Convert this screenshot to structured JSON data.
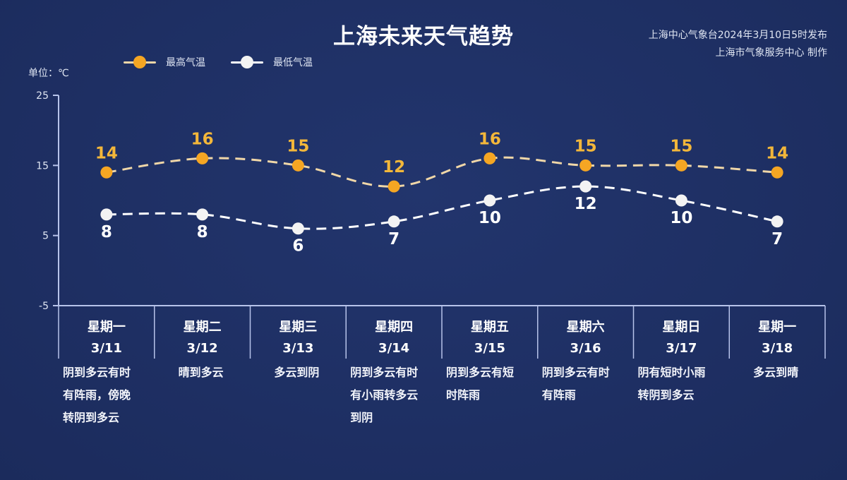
{
  "header": {
    "title": "上海未来天气趋势",
    "publisher_line1": "上海中心气象台2024年3月10日5时发布",
    "publisher_line2": "上海市气象服务中心 制作"
  },
  "unit_label": "单位：℃",
  "legend": [
    {
      "label": "最高气温",
      "color": "#f5a623"
    },
    {
      "label": "最低气温",
      "color": "#ffffff"
    }
  ],
  "colors": {
    "background": "#1f3066",
    "high_line": "#f0d7a8",
    "high_marker": "#f5a623",
    "high_label": "#f3b73a",
    "low_line": "#ffffff",
    "low_marker": "#f3f3f3",
    "axis": "#b7c3ea"
  },
  "days": [
    {
      "weekday": "星期一",
      "date": "3/11",
      "desc": [
        "阴到多云有时",
        "有阵雨，傍晚",
        "转阴到多云"
      ],
      "center": false
    },
    {
      "weekday": "星期二",
      "date": "3/12",
      "desc": [
        "晴到多云"
      ],
      "center": true
    },
    {
      "weekday": "星期三",
      "date": "3/13",
      "desc": [
        "多云到阴"
      ],
      "center": true
    },
    {
      "weekday": "星期四",
      "date": "3/14",
      "desc": [
        "阴到多云有时",
        "有小雨转多云",
        "到阴"
      ],
      "center": false
    },
    {
      "weekday": "星期五",
      "date": "3/15",
      "desc": [
        "阴到多云有短",
        "时阵雨"
      ],
      "center": false
    },
    {
      "weekday": "星期六",
      "date": "3/16",
      "desc": [
        "阴到多云有时",
        "有阵雨"
      ],
      "center": false
    },
    {
      "weekday": "星期日",
      "date": "3/17",
      "desc": [
        "阴有短时小雨",
        "转阴到多云"
      ],
      "center": false
    },
    {
      "weekday": "星期一",
      "date": "3/18",
      "desc": [
        "多云到晴"
      ],
      "center": true
    }
  ],
  "chart_data": {
    "type": "line",
    "title": "上海未来天气趋势",
    "xlabel": "",
    "ylabel": "单位：℃",
    "categories": [
      "星期一 3/11",
      "星期二 3/12",
      "星期三 3/13",
      "星期四 3/14",
      "星期五 3/15",
      "星期六 3/16",
      "星期日 3/17",
      "星期一 3/18"
    ],
    "series": [
      {
        "name": "最高气温",
        "values": [
          14,
          16,
          15,
          12,
          16,
          15,
          15,
          14
        ],
        "color": "#f5a623",
        "line_style": "dashed"
      },
      {
        "name": "最低气温",
        "values": [
          8,
          8,
          6,
          7,
          10,
          12,
          10,
          7
        ],
        "color": "#ffffff",
        "line_style": "dashed"
      }
    ],
    "yticks": [
      25,
      15,
      5,
      -5
    ],
    "ylim": [
      -5,
      25
    ],
    "grid": false,
    "legend_position": "top-left",
    "data_labels": true
  }
}
